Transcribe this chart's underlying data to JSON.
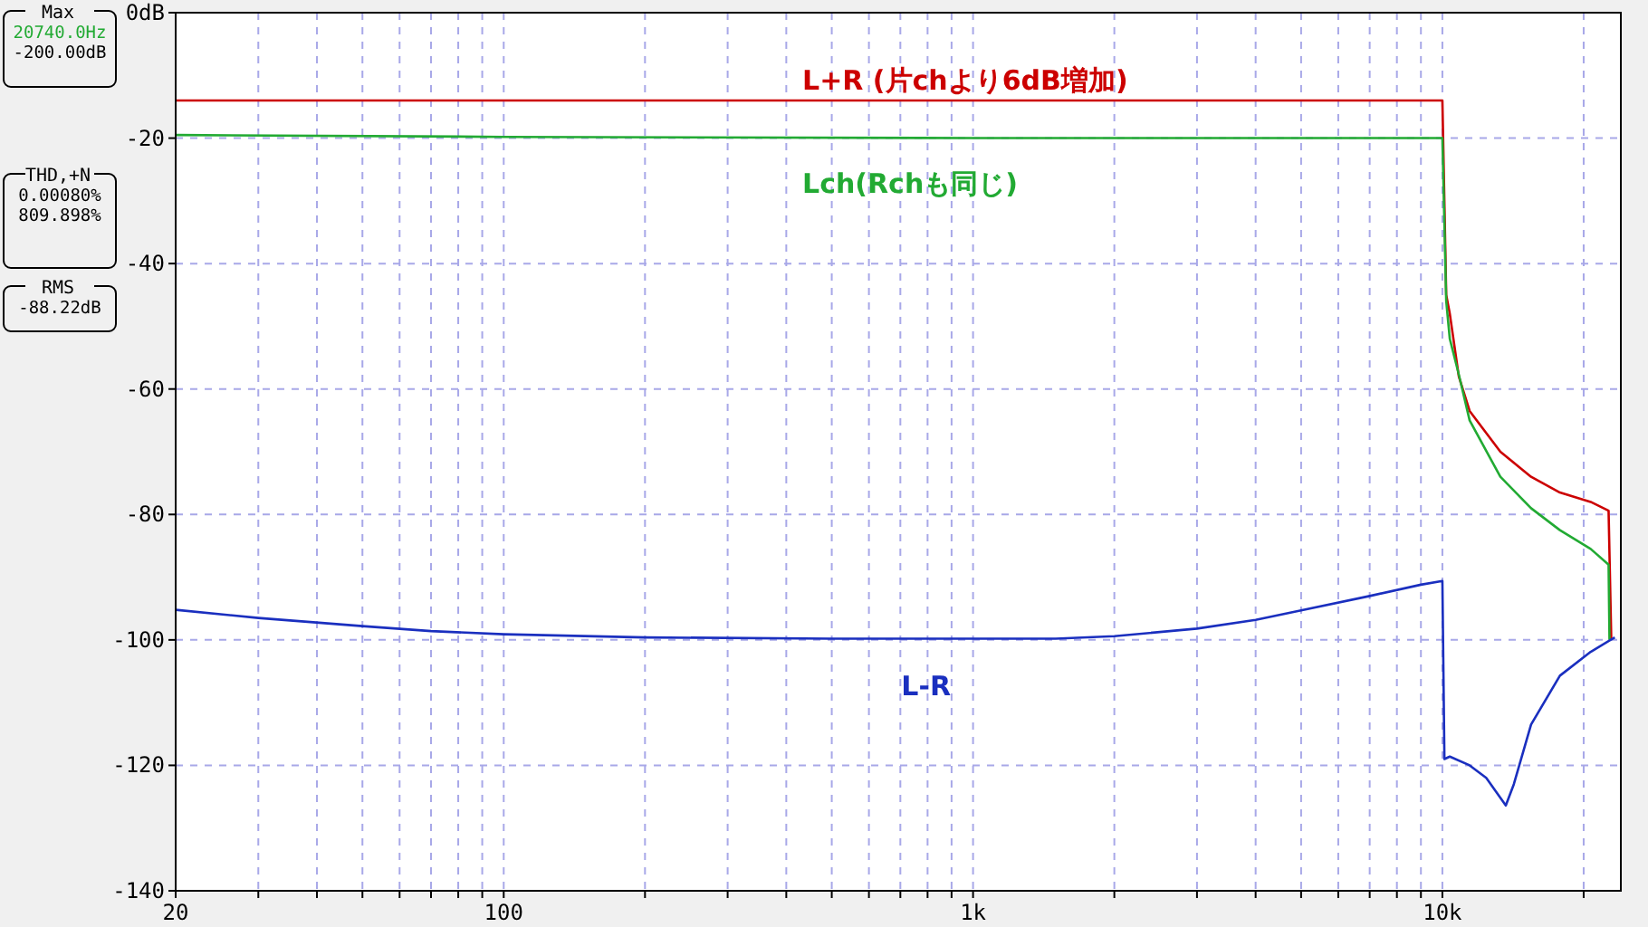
{
  "chart_data": {
    "type": "line",
    "log": "x",
    "grid": true,
    "legend": false,
    "line_style": "solid",
    "marker": "none",
    "xlim": [
      20,
      24000
    ],
    "xticks": [
      20,
      {
        "value": 30,
        "label": null
      },
      {
        "value": 40,
        "label": null
      },
      {
        "value": 50,
        "label": null
      },
      {
        "value": 60,
        "label": null
      },
      {
        "value": 70,
        "label": null
      },
      {
        "value": 80,
        "label": null
      },
      {
        "value": 90,
        "label": null
      },
      100,
      {
        "value": 200,
        "label": null
      },
      {
        "value": 300,
        "label": null
      },
      {
        "value": 400,
        "label": null
      },
      {
        "value": 500,
        "label": null
      },
      {
        "value": 600,
        "label": null
      },
      {
        "value": 700,
        "label": null
      },
      {
        "value": 800,
        "label": null
      },
      {
        "value": 900,
        "label": null
      },
      {
        "value": 1000,
        "label": "1k"
      },
      {
        "value": 2000,
        "label": null
      },
      {
        "value": 3000,
        "label": null
      },
      {
        "value": 4000,
        "label": null
      },
      {
        "value": 5000,
        "label": null
      },
      {
        "value": 6000,
        "label": null
      },
      {
        "value": 7000,
        "label": null
      },
      {
        "value": 8000,
        "label": null
      },
      {
        "value": 9000,
        "label": null
      },
      {
        "value": 10000,
        "label": "10k"
      },
      {
        "value": 20000,
        "label": null
      }
    ],
    "ylim": [
      -140,
      0
    ],
    "yticks": [
      {
        "value": 0,
        "label": "0dB"
      },
      -20,
      -40,
      -60,
      -80,
      -100,
      -120,
      -140
    ],
    "series": [
      {
        "name": "L+R (片chより6dB増加)",
        "color": "#cc0000",
        "x": [
          20,
          100,
          1000,
          5000,
          10000,
          10190,
          10370,
          10840,
          11430,
          13290,
          15450,
          17800,
          20700,
          22600,
          22900
        ],
        "values": [
          -14,
          -14,
          -14,
          -14,
          -14,
          -45,
          -48,
          -58,
          -63.5,
          -70,
          -74,
          -76.5,
          -78,
          -79.4,
          -100
        ]
      },
      {
        "name": "Lch(Rchも同じ)",
        "color": "#22aa33",
        "x": [
          20,
          100,
          1000,
          5000,
          10000,
          10190,
          10370,
          10840,
          11430,
          13290,
          15450,
          17800,
          20700,
          22600,
          22700
        ],
        "values": [
          -19.5,
          -19.8,
          -20,
          -20,
          -20,
          -46,
          -52,
          -57.7,
          -65,
          -74,
          -79,
          -82.5,
          -85.5,
          -88,
          -100
        ]
      },
      {
        "name": "L-R",
        "color": "#1a2fbf",
        "x": [
          20,
          30,
          50,
          70,
          100,
          200,
          500,
          1000,
          1500,
          2000,
          3000,
          4000,
          5000,
          7000,
          9000,
          10000,
          10100,
          10370,
          11430,
          12400,
          13650,
          14200,
          15450,
          17800,
          20700,
          23300
        ],
        "values": [
          -95.2,
          -96.5,
          -97.8,
          -98.6,
          -99.1,
          -99.6,
          -99.8,
          -99.8,
          -99.8,
          -99.4,
          -98.2,
          -96.8,
          -95.3,
          -93,
          -91.2,
          -90.6,
          -119,
          -118.6,
          -120,
          -122,
          -126.4,
          -123,
          -113.5,
          -105.7,
          -101.9,
          -99.6
        ]
      }
    ],
    "annotations": [
      "Max",
      "20740.0Hz",
      "-200.00dB",
      "THD,+N",
      "0.00080%",
      "809.898%",
      "RMS",
      "-88.22dB"
    ]
  }
}
